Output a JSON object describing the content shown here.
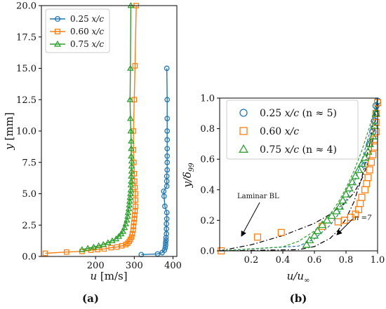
{
  "colors": {
    "blue": "#1f77b4",
    "orange": "#ff7f0e",
    "green": "#2ca02c",
    "black": "#000000"
  },
  "chart_data": [
    {
      "type": "line",
      "panel_label": "(a)",
      "xlabel": "u [m/s]",
      "ylabel": "y [mm]",
      "xlim": [
        60,
        410
      ],
      "ylim": [
        0,
        20
      ],
      "xticks": [
        200,
        300,
        400
      ],
      "yticks": [
        0.0,
        2.5,
        5.0,
        7.5,
        10.0,
        12.5,
        15.0,
        17.5,
        20.0
      ],
      "xtick_labels": [
        "200",
        "300",
        "400"
      ],
      "ytick_labels": [
        "0.0",
        "2.5",
        "5.0",
        "7.5",
        "10.0",
        "12.5",
        "15.0",
        "17.5",
        "20.0"
      ],
      "grid": false,
      "legend_position": "top-left",
      "series": [
        {
          "name": "0.25 x/c",
          "color": "#1f77b4",
          "marker": "circle",
          "points": [
            [
              318,
              0.15
            ],
            [
              360,
              0.2
            ],
            [
              372,
              0.3
            ],
            [
              378,
              0.5
            ],
            [
              380,
              0.7
            ],
            [
              381,
              0.9
            ],
            [
              381,
              1.1
            ],
            [
              382,
              1.3
            ],
            [
              382,
              1.5
            ],
            [
              383,
              1.8
            ],
            [
              383,
              2.2
            ],
            [
              383,
              2.6
            ],
            [
              384,
              3.0
            ],
            [
              384,
              3.5
            ],
            [
              379,
              4.0
            ],
            [
              377,
              4.8
            ],
            [
              376,
              5.2
            ],
            [
              384,
              5.6
            ],
            [
              384,
              6.0
            ],
            [
              384,
              6.4
            ],
            [
              385,
              6.9
            ],
            [
              385,
              7.5
            ],
            [
              385,
              8.0
            ],
            [
              385,
              8.6
            ],
            [
              385,
              9.3
            ],
            [
              385,
              10.0
            ],
            [
              385,
              11.0
            ],
            [
              385,
              12.5
            ],
            [
              384,
              15.0
            ]
          ]
        },
        {
          "name": "0.60 x/c",
          "color": "#ff7f0e",
          "marker": "square",
          "points": [
            [
              70,
              0.25
            ],
            [
              125,
              0.35
            ],
            [
              165,
              0.4
            ],
            [
              188,
              0.5
            ],
            [
              205,
              0.55
            ],
            [
              222,
              0.6
            ],
            [
              240,
              0.7
            ],
            [
              255,
              0.75
            ],
            [
              268,
              0.85
            ],
            [
              278,
              0.95
            ],
            [
              283,
              1.05
            ],
            [
              287,
              1.2
            ],
            [
              290,
              1.35
            ],
            [
              293,
              1.55
            ],
            [
              295,
              1.8
            ],
            [
              297,
              2.1
            ],
            [
              298,
              2.4
            ],
            [
              299,
              2.7
            ],
            [
              300,
              3.0
            ],
            [
              301,
              3.3
            ],
            [
              302,
              3.6
            ],
            [
              303,
              4.0
            ],
            [
              303,
              4.5
            ],
            [
              303,
              5.0
            ],
            [
              302,
              5.5
            ],
            [
              301,
              6.0
            ],
            [
              300,
              6.6
            ],
            [
              299,
              7.5
            ],
            [
              298,
              8.5
            ],
            [
              298,
              10.0
            ],
            [
              300,
              12.5
            ],
            [
              302,
              15.2
            ],
            [
              305,
              20.0
            ]
          ]
        },
        {
          "name": "0.75 x/c",
          "color": "#2ca02c",
          "marker": "triangle",
          "points": [
            [
              165,
              0.55
            ],
            [
              180,
              0.65
            ],
            [
              195,
              0.75
            ],
            [
              208,
              0.85
            ],
            [
              220,
              0.95
            ],
            [
              232,
              1.1
            ],
            [
              243,
              1.25
            ],
            [
              253,
              1.4
            ],
            [
              260,
              1.6
            ],
            [
              266,
              1.8
            ],
            [
              271,
              2.0
            ],
            [
              275,
              2.3
            ],
            [
              278,
              2.6
            ],
            [
              281,
              2.9
            ],
            [
              283,
              3.2
            ],
            [
              284,
              3.5
            ],
            [
              286,
              3.8
            ],
            [
              287,
              4.1
            ],
            [
              288,
              4.4
            ],
            [
              289,
              4.7
            ],
            [
              290,
              5.0
            ],
            [
              291,
              5.3
            ],
            [
              291,
              5.7
            ],
            [
              292,
              6.0
            ],
            [
              292,
              6.4
            ],
            [
              293,
              6.8
            ],
            [
              293,
              7.2
            ],
            [
              293,
              7.6
            ],
            [
              292,
              8.0
            ],
            [
              292,
              8.6
            ],
            [
              292,
              9.2
            ],
            [
              291,
              10.0
            ],
            [
              290,
              11.0
            ],
            [
              289,
              12.5
            ],
            [
              290,
              15.0
            ],
            [
              291,
              20.0
            ]
          ]
        }
      ]
    },
    {
      "type": "scatter",
      "panel_label": "(b)",
      "xlabel": "u/u∞",
      "ylabel": "y/δ99",
      "xlim": [
        0,
        1
      ],
      "ylim": [
        0,
        1
      ],
      "xticks": [
        0.2,
        0.4,
        0.6,
        0.8,
        1.0
      ],
      "yticks": [
        0.0,
        0.2,
        0.4,
        0.6,
        0.8,
        1.0
      ],
      "xtick_labels": [
        "0.2",
        "0.4",
        "0.6",
        "0.8",
        "1.0"
      ],
      "ytick_labels": [
        "0.0",
        "0.2",
        "0.4",
        "0.6",
        "0.8",
        "1.0"
      ],
      "grid": false,
      "legend_position": "top-left",
      "annotations": [
        "Laminar BL",
        "n =7"
      ],
      "series": [
        {
          "name": "0.25 x/c (n ≈ 5)",
          "color": "#1f77b4",
          "marker": "open-circle",
          "points": [
            [
              0.92,
              0.56
            ],
            [
              0.95,
              0.7
            ],
            [
              0.97,
              0.78
            ],
            [
              0.98,
              0.85
            ],
            [
              0.99,
              0.9
            ],
            [
              0.99,
              0.95
            ],
            [
              1.0,
              0.98
            ]
          ]
        },
        {
          "name": "0.60 x/c",
          "color": "#ff7f0e",
          "marker": "open-square",
          "points": [
            [
              0.01,
              0.0
            ],
            [
              0.24,
              0.09
            ],
            [
              0.39,
              0.12
            ],
            [
              0.65,
              0.16
            ],
            [
              0.75,
              0.19
            ],
            [
              0.79,
              0.2
            ],
            [
              0.83,
              0.22
            ],
            [
              0.86,
              0.24
            ],
            [
              0.88,
              0.27
            ],
            [
              0.89,
              0.31
            ],
            [
              0.9,
              0.35
            ],
            [
              0.92,
              0.4
            ],
            [
              0.93,
              0.44
            ],
            [
              0.94,
              0.48
            ],
            [
              0.95,
              0.53
            ],
            [
              0.96,
              0.58
            ],
            [
              0.97,
              0.63
            ],
            [
              0.98,
              0.68
            ],
            [
              0.98,
              0.73
            ],
            [
              0.99,
              0.78
            ],
            [
              0.99,
              0.84
            ],
            [
              0.99,
              0.9
            ],
            [
              1.0,
              0.97
            ]
          ]
        },
        {
          "name": "0.75 x/c (n ≈ 4)",
          "color": "#2ca02c",
          "marker": "open-triangle",
          "points": [
            [
              0.55,
              0.04
            ],
            [
              0.57,
              0.07
            ],
            [
              0.6,
              0.1
            ],
            [
              0.62,
              0.13
            ],
            [
              0.65,
              0.17
            ],
            [
              0.68,
              0.2
            ],
            [
              0.71,
              0.23
            ],
            [
              0.74,
              0.26
            ],
            [
              0.76,
              0.29
            ],
            [
              0.78,
              0.33
            ],
            [
              0.8,
              0.37
            ],
            [
              0.82,
              0.41
            ],
            [
              0.84,
              0.45
            ],
            [
              0.86,
              0.49
            ],
            [
              0.88,
              0.53
            ],
            [
              0.9,
              0.57
            ],
            [
              0.92,
              0.61
            ],
            [
              0.94,
              0.65
            ],
            [
              0.95,
              0.7
            ],
            [
              0.97,
              0.75
            ],
            [
              0.98,
              0.82
            ],
            [
              0.99,
              0.9
            ]
          ]
        },
        {
          "name": "Laminar BL",
          "color": "#000000",
          "style": "dash-dot",
          "points": [
            [
              0,
              0
            ],
            [
              0.2,
              0.04
            ],
            [
              0.4,
              0.1
            ],
            [
              0.6,
              0.18
            ],
            [
              0.7,
              0.24
            ],
            [
              0.8,
              0.32
            ],
            [
              0.85,
              0.38
            ],
            [
              0.9,
              0.47
            ],
            [
              0.93,
              0.55
            ],
            [
              0.96,
              0.66
            ],
            [
              0.98,
              0.8
            ],
            [
              1.0,
              1.0
            ]
          ]
        },
        {
          "name": "n =7",
          "color": "#000000",
          "style": "dash-dot",
          "points": [
            [
              0,
              0
            ],
            [
              0.5,
              0.008
            ],
            [
              0.6,
              0.028
            ],
            [
              0.7,
              0.082
            ],
            [
              0.75,
              0.134
            ],
            [
              0.8,
              0.21
            ],
            [
              0.85,
              0.32
            ],
            [
              0.9,
              0.48
            ],
            [
              0.95,
              0.7
            ],
            [
              1.0,
              1.0
            ]
          ]
        },
        {
          "name": "0.25 x/c fit",
          "color": "#1f77b4",
          "style": "dashed",
          "points": [
            [
              0,
              0
            ],
            [
              0.5,
              0.031
            ],
            [
              0.6,
              0.078
            ],
            [
              0.7,
              0.168
            ],
            [
              0.75,
              0.237
            ],
            [
              0.8,
              0.328
            ],
            [
              0.85,
              0.444
            ],
            [
              0.9,
              0.59
            ],
            [
              0.95,
              0.774
            ],
            [
              1.0,
              1.0
            ]
          ]
        },
        {
          "name": "0.75 x/c fit",
          "color": "#2ca02c",
          "style": "dashed",
          "points": [
            [
              0,
              0
            ],
            [
              0.4,
              0.026
            ],
            [
              0.5,
              0.063
            ],
            [
              0.6,
              0.13
            ],
            [
              0.7,
              0.24
            ],
            [
              0.75,
              0.316
            ],
            [
              0.8,
              0.41
            ],
            [
              0.85,
              0.522
            ],
            [
              0.9,
              0.656
            ],
            [
              0.95,
              0.815
            ],
            [
              1.0,
              1.0
            ]
          ]
        }
      ]
    }
  ],
  "legend_a": [
    {
      "prefix": "0.25 ",
      "var": "x/c",
      "suffix": ""
    },
    {
      "prefix": "0.60 ",
      "var": "x/c",
      "suffix": ""
    },
    {
      "prefix": "0.75 ",
      "var": "x/c",
      "suffix": ""
    }
  ],
  "legend_b": [
    {
      "prefix": "0.25 ",
      "var": "x/c",
      "suffix": " (n ≈ 5)"
    },
    {
      "prefix": "0.60 ",
      "var": "x/c",
      "suffix": ""
    },
    {
      "prefix": "0.75 ",
      "var": "x/c",
      "suffix": " (n ≈ 4)"
    }
  ],
  "labels": {
    "a_xlabel_var": "u",
    "a_xlabel_unit": " [m/s]",
    "a_ylabel_var": "y",
    "a_ylabel_unit": " [mm]",
    "b_xlabel_num": "u/u",
    "b_xlabel_sub": "∞",
    "b_ylabel_num": "y/δ",
    "b_ylabel_sub": "99",
    "panel_a": "(a)",
    "panel_b": "(b)",
    "laminar": "Laminar BL",
    "n7": "n =7"
  }
}
